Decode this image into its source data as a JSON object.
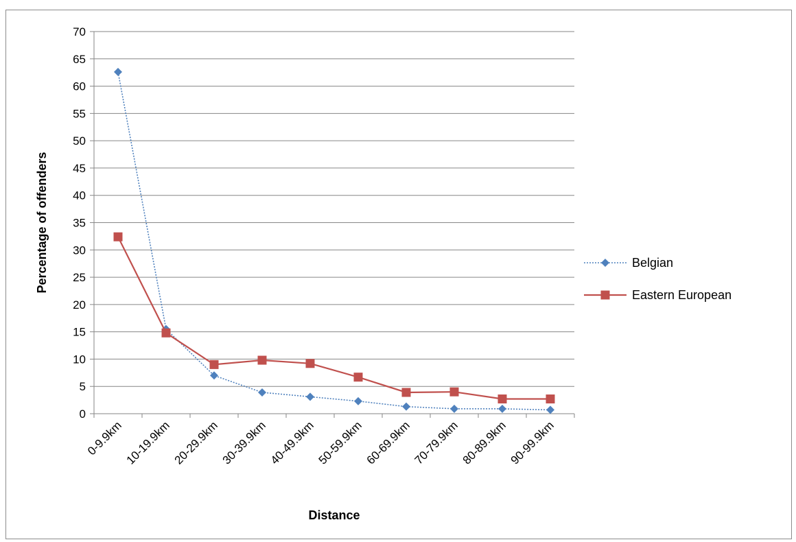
{
  "chart_data": {
    "type": "line",
    "title": "",
    "xlabel": "Distance",
    "ylabel": "Percentage of offenders",
    "ylim": [
      0,
      70
    ],
    "yticks": [
      0,
      5,
      10,
      15,
      20,
      25,
      30,
      35,
      40,
      45,
      50,
      55,
      60,
      65,
      70
    ],
    "grid": "horizontal",
    "legend_position": "right",
    "categories": [
      "0-9.9km",
      "10-19.9km",
      "20-29.9km",
      "30-39.9km",
      "40-49.9km",
      "50-59.9km",
      "60-69.9km",
      "70-79.9km",
      "80-89.9km",
      "90-99.9km"
    ],
    "series": [
      {
        "name": "Belgian",
        "color": "#4F81BD",
        "line_style": "dotted",
        "marker": "diamond",
        "values": [
          62.6,
          15.5,
          7.0,
          3.9,
          3.1,
          2.3,
          1.3,
          0.9,
          0.9,
          0.7
        ]
      },
      {
        "name": "Eastern European",
        "color": "#C0504D",
        "line_style": "solid",
        "marker": "square",
        "values": [
          32.4,
          14.8,
          9.0,
          9.8,
          9.2,
          6.7,
          3.9,
          4.0,
          2.7,
          2.7
        ]
      }
    ]
  }
}
